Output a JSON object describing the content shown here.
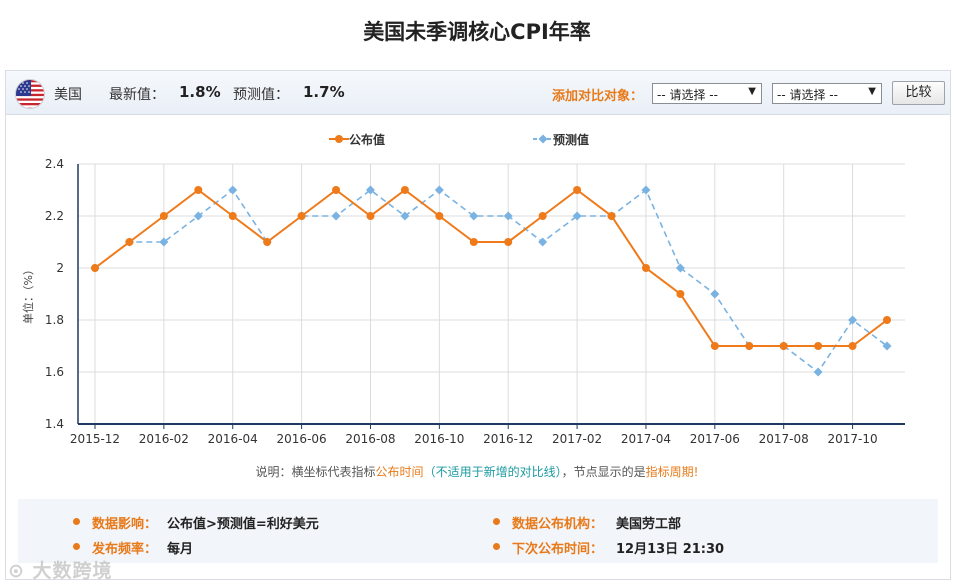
{
  "title": "美国未季调核心CPI年率",
  "header": {
    "country": "美国",
    "latest_label": "最新值：",
    "latest_value": "1.8%",
    "forecast_label": "预测值：",
    "forecast_value": "1.7%",
    "compare_label": "添加对比对象：",
    "select1": "-- 请选择 --",
    "select2": "-- 请选择 --",
    "compare_button": "比较"
  },
  "chart_data": {
    "type": "line",
    "ylabel": "单位：（%）",
    "ylim": [
      1.4,
      2.4
    ],
    "yticks": [
      "1.4",
      "1.6",
      "1.8",
      "2",
      "2.2",
      "2.4"
    ],
    "xtick_labels": [
      "2015-12",
      "2016-02",
      "2016-04",
      "2016-06",
      "2016-08",
      "2016-10",
      "2016-12",
      "2017-02",
      "2017-04",
      "2017-06",
      "2017-08",
      "2017-10"
    ],
    "x": [
      "2015-12",
      "2016-01",
      "2016-02",
      "2016-03",
      "2016-04",
      "2016-05",
      "2016-06",
      "2016-07",
      "2016-08",
      "2016-09",
      "2016-10",
      "2016-11",
      "2016-12",
      "2017-01",
      "2017-02",
      "2017-03",
      "2017-04",
      "2017-05",
      "2017-06",
      "2017-07",
      "2017-08",
      "2017-09",
      "2017-10",
      "2017-11"
    ],
    "grid": true,
    "legend_position": "top-center",
    "series": [
      {
        "name": "公布值",
        "color": "#ef7a1a",
        "style": "solid",
        "marker": "circle",
        "values": [
          2.0,
          2.1,
          2.2,
          2.3,
          2.2,
          2.1,
          2.2,
          2.3,
          2.2,
          2.3,
          2.2,
          2.1,
          2.1,
          2.2,
          2.3,
          2.2,
          2.0,
          1.9,
          1.7,
          1.7,
          1.7,
          1.7,
          1.7,
          1.8
        ]
      },
      {
        "name": "预测值",
        "color": "#7ab3e2",
        "style": "dashed",
        "marker": "diamond",
        "values": [
          2.0,
          2.1,
          2.1,
          2.2,
          2.3,
          2.1,
          2.2,
          2.2,
          2.3,
          2.2,
          2.3,
          2.2,
          2.2,
          2.1,
          2.2,
          2.2,
          2.3,
          2.0,
          1.9,
          1.7,
          1.7,
          1.6,
          1.8,
          1.7
        ]
      }
    ]
  },
  "note": {
    "prefix": "说明：横坐标代表指标",
    "publish_time": "公布时间",
    "paren_open": "（",
    "not_applicable": "不适用于新增的对比线",
    "paren_close": "）",
    "middle": "，节点显示的是",
    "indicator_period": "指标周期",
    "suffix": "!"
  },
  "info": {
    "impact_label": "数据影响：",
    "impact_value": "公布值>预测值=利好美元",
    "agency_label": "数据公布机构：",
    "agency_value": "美国劳工部",
    "frequency_label": "发布频率：",
    "frequency_value": "每月",
    "next_label": "下次公布时间：",
    "next_value": "12月13日 21:30"
  },
  "watermark": "大数跨境"
}
